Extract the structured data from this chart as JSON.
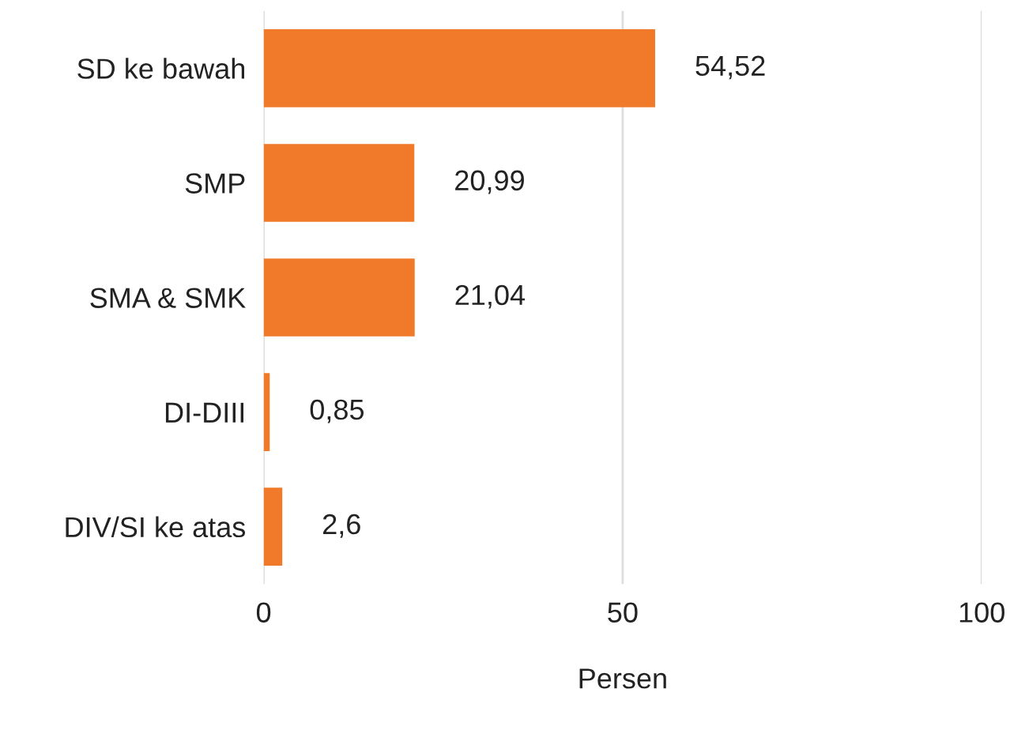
{
  "chart_data": {
    "type": "bar",
    "orientation": "horizontal",
    "xlabel": "Persen",
    "categories": [
      "SD ke bawah",
      "SMP",
      "SMA & SMK",
      "DI-DIII",
      "DIV/SI ke atas"
    ],
    "values": [
      54.52,
      20.99,
      21.04,
      0.85,
      2.6
    ],
    "value_labels": [
      "54,52",
      "20,99",
      "21,04",
      "0,85",
      "2,6"
    ],
    "color": "#f07a2a",
    "xlim": [
      0,
      100
    ],
    "xticks": [
      0,
      50,
      100
    ],
    "grid": "x"
  }
}
